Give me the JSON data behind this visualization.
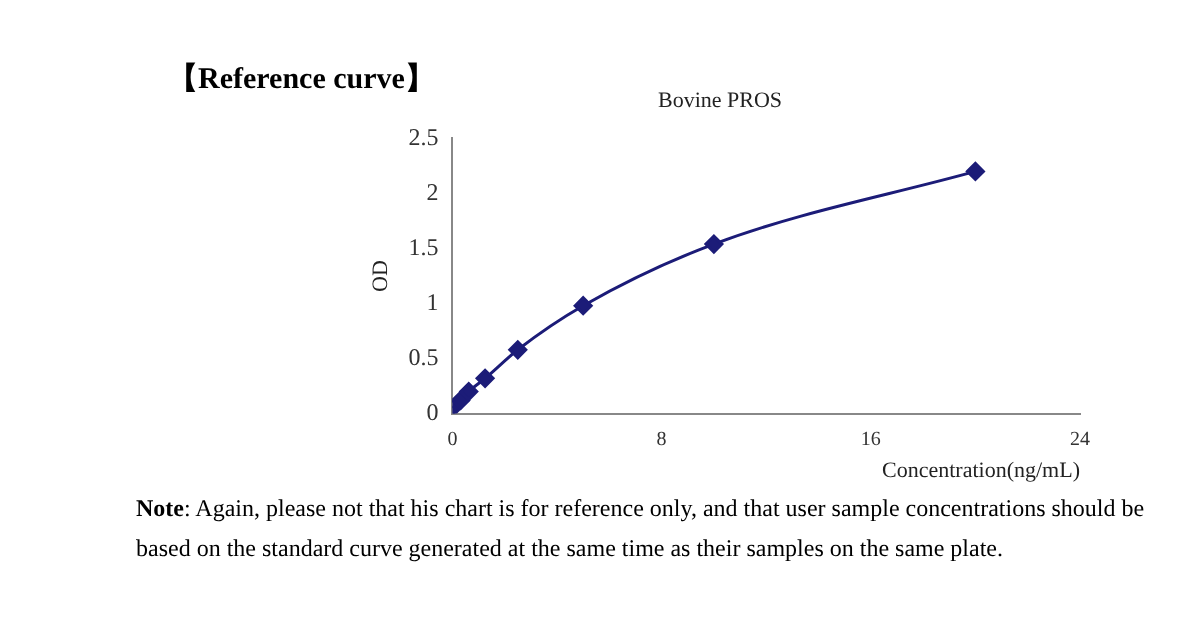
{
  "chart_data": {
    "type": "line",
    "title": "【Reference curve】",
    "subtitle": "Bovine PROS",
    "xlabel": "Concentration(ng/mL)",
    "ylabel": "OD",
    "x": [
      0,
      0.3125,
      0.625,
      1.25,
      2.5,
      5,
      10,
      20
    ],
    "series": [
      {
        "color": "#1c1c78",
        "values": [
          0.05,
          0.12,
          0.2,
          0.32,
          0.58,
          0.98,
          1.54,
          2.2
        ]
      }
    ],
    "xlim": [
      0,
      24
    ],
    "xticks": [
      0,
      8,
      16,
      24
    ],
    "ylim": [
      0,
      2.5
    ],
    "yticks": [
      0,
      0.5,
      1,
      1.5,
      2,
      2.5
    ],
    "grid": false,
    "legend": false,
    "marker": "diamond",
    "line_style": "solid",
    "annotations": [
      "Note: Again, please not that his chart is for reference only, and that user sample concentrations should be based on the standard curve generated at the same time as their samples on the same plate."
    ]
  }
}
